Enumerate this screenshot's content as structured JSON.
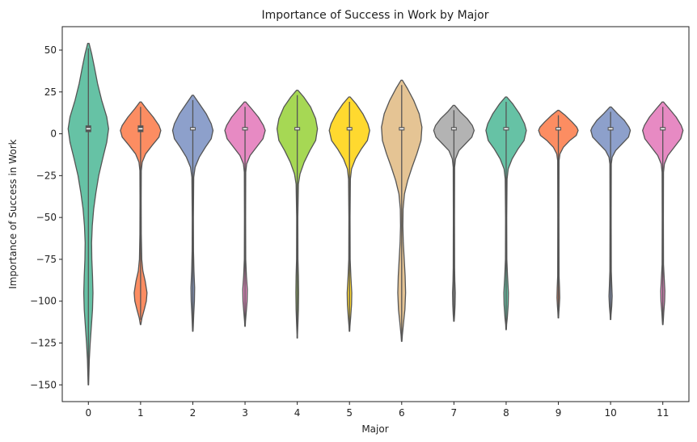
{
  "chart_data": {
    "type": "violin",
    "title": "Importance of Success in Work by Major",
    "xlabel": "Major",
    "ylabel": "Importance of Success in Work",
    "categories": [
      "0",
      "1",
      "2",
      "3",
      "4",
      "5",
      "6",
      "7",
      "8",
      "9",
      "10",
      "11"
    ],
    "ylim": [
      -160,
      64
    ],
    "yticks": [
      50,
      25,
      0,
      -25,
      -50,
      -75,
      -100,
      -125,
      -150
    ],
    "palette": [
      "#66c2a5",
      "#fc8d62",
      "#8da0cb",
      "#e78ac3",
      "#a6d854",
      "#ffd92f",
      "#e5c494",
      "#b3b3b3",
      "#66c2a5",
      "#fc8d62",
      "#8da0cb",
      "#e78ac3"
    ],
    "outline_color": "#555555",
    "violins": [
      {
        "category": "0",
        "max": 54,
        "min": -150,
        "median": 3,
        "q1": 1,
        "q3": 5,
        "profile": [
          [
            54,
            0.03
          ],
          [
            48,
            0.14
          ],
          [
            40,
            0.26
          ],
          [
            30,
            0.4
          ],
          [
            20,
            0.58
          ],
          [
            10,
            0.8
          ],
          [
            3,
            0.88
          ],
          [
            -5,
            0.8
          ],
          [
            -15,
            0.62
          ],
          [
            -25,
            0.45
          ],
          [
            -35,
            0.33
          ],
          [
            -45,
            0.23
          ],
          [
            -55,
            0.17
          ],
          [
            -65,
            0.14
          ],
          [
            -75,
            0.15
          ],
          [
            -85,
            0.18
          ],
          [
            -95,
            0.2
          ],
          [
            -105,
            0.18
          ],
          [
            -115,
            0.13
          ],
          [
            -125,
            0.08
          ],
          [
            -135,
            0.04
          ],
          [
            -145,
            0.02
          ],
          [
            -150,
            0.01
          ]
        ]
      },
      {
        "category": "1",
        "max": 19,
        "min": -114,
        "median": 3,
        "q1": 1,
        "q3": 5,
        "profile": [
          [
            19,
            0.03
          ],
          [
            15,
            0.25
          ],
          [
            10,
            0.55
          ],
          [
            5,
            0.8
          ],
          [
            2,
            0.88
          ],
          [
            -2,
            0.8
          ],
          [
            -7,
            0.5
          ],
          [
            -12,
            0.22
          ],
          [
            -17,
            0.07
          ],
          [
            -22,
            0.03
          ],
          [
            -40,
            0.025
          ],
          [
            -60,
            0.03
          ],
          [
            -75,
            0.05
          ],
          [
            -82,
            0.1
          ],
          [
            -88,
            0.2
          ],
          [
            -95,
            0.28
          ],
          [
            -100,
            0.25
          ],
          [
            -105,
            0.16
          ],
          [
            -110,
            0.06
          ],
          [
            -114,
            0.01
          ]
        ]
      },
      {
        "category": "2",
        "max": 23,
        "min": -118,
        "median": 3,
        "q1": 2,
        "q3": 4,
        "profile": [
          [
            23,
            0.03
          ],
          [
            18,
            0.28
          ],
          [
            12,
            0.58
          ],
          [
            6,
            0.8
          ],
          [
            2,
            0.88
          ],
          [
            -3,
            0.8
          ],
          [
            -8,
            0.55
          ],
          [
            -14,
            0.28
          ],
          [
            -20,
            0.1
          ],
          [
            -26,
            0.04
          ],
          [
            -50,
            0.025
          ],
          [
            -70,
            0.03
          ],
          [
            -82,
            0.05
          ],
          [
            -92,
            0.08
          ],
          [
            -100,
            0.07
          ],
          [
            -108,
            0.04
          ],
          [
            -115,
            0.02
          ],
          [
            -118,
            0.01
          ]
        ]
      },
      {
        "category": "3",
        "max": 19,
        "min": -115,
        "median": 3,
        "q1": 2,
        "q3": 4,
        "profile": [
          [
            19,
            0.03
          ],
          [
            15,
            0.28
          ],
          [
            10,
            0.58
          ],
          [
            5,
            0.8
          ],
          [
            2,
            0.88
          ],
          [
            -3,
            0.78
          ],
          [
            -8,
            0.5
          ],
          [
            -13,
            0.22
          ],
          [
            -18,
            0.07
          ],
          [
            -23,
            0.03
          ],
          [
            -50,
            0.025
          ],
          [
            -75,
            0.03
          ],
          [
            -85,
            0.06
          ],
          [
            -93,
            0.1
          ],
          [
            -100,
            0.09
          ],
          [
            -107,
            0.05
          ],
          [
            -112,
            0.02
          ],
          [
            -115,
            0.01
          ]
        ]
      },
      {
        "category": "4",
        "max": 26,
        "min": -122,
        "median": 3,
        "q1": 2,
        "q3": 4,
        "profile": [
          [
            26,
            0.03
          ],
          [
            22,
            0.28
          ],
          [
            16,
            0.58
          ],
          [
            9,
            0.8
          ],
          [
            3,
            0.88
          ],
          [
            -4,
            0.8
          ],
          [
            -10,
            0.55
          ],
          [
            -17,
            0.3
          ],
          [
            -24,
            0.12
          ],
          [
            -30,
            0.05
          ],
          [
            -50,
            0.025
          ],
          [
            -75,
            0.03
          ],
          [
            -85,
            0.05
          ],
          [
            -95,
            0.06
          ],
          [
            -105,
            0.05
          ],
          [
            -113,
            0.03
          ],
          [
            -120,
            0.01
          ],
          [
            -122,
            0.01
          ]
        ]
      },
      {
        "category": "5",
        "max": 22,
        "min": -118,
        "median": 3,
        "q1": 2,
        "q3": 4,
        "profile": [
          [
            22,
            0.03
          ],
          [
            18,
            0.28
          ],
          [
            12,
            0.58
          ],
          [
            6,
            0.8
          ],
          [
            2,
            0.88
          ],
          [
            -4,
            0.78
          ],
          [
            -9,
            0.52
          ],
          [
            -15,
            0.26
          ],
          [
            -21,
            0.09
          ],
          [
            -27,
            0.04
          ],
          [
            -50,
            0.025
          ],
          [
            -75,
            0.03
          ],
          [
            -85,
            0.06
          ],
          [
            -95,
            0.1
          ],
          [
            -102,
            0.09
          ],
          [
            -110,
            0.05
          ],
          [
            -115,
            0.02
          ],
          [
            -118,
            0.01
          ]
        ]
      },
      {
        "category": "6",
        "max": 32,
        "min": -124,
        "median": 3,
        "q1": 2,
        "q3": 4,
        "profile": [
          [
            32,
            0.03
          ],
          [
            27,
            0.25
          ],
          [
            20,
            0.52
          ],
          [
            12,
            0.76
          ],
          [
            4,
            0.88
          ],
          [
            -4,
            0.84
          ],
          [
            -12,
            0.66
          ],
          [
            -20,
            0.45
          ],
          [
            -28,
            0.26
          ],
          [
            -36,
            0.12
          ],
          [
            -45,
            0.06
          ],
          [
            -55,
            0.05
          ],
          [
            -65,
            0.07
          ],
          [
            -75,
            0.11
          ],
          [
            -85,
            0.15
          ],
          [
            -95,
            0.17
          ],
          [
            -105,
            0.14
          ],
          [
            -113,
            0.08
          ],
          [
            -120,
            0.03
          ],
          [
            -124,
            0.01
          ]
        ]
      },
      {
        "category": "7",
        "max": 17,
        "min": -112,
        "median": 3,
        "q1": 2,
        "q3": 4,
        "profile": [
          [
            17,
            0.03
          ],
          [
            13,
            0.28
          ],
          [
            9,
            0.58
          ],
          [
            5,
            0.8
          ],
          [
            2,
            0.88
          ],
          [
            -2,
            0.78
          ],
          [
            -6,
            0.5
          ],
          [
            -10,
            0.22
          ],
          [
            -15,
            0.07
          ],
          [
            -20,
            0.03
          ],
          [
            -50,
            0.025
          ],
          [
            -80,
            0.03
          ],
          [
            -88,
            0.04
          ],
          [
            -95,
            0.06
          ],
          [
            -102,
            0.05
          ],
          [
            -108,
            0.03
          ],
          [
            -112,
            0.01
          ]
        ]
      },
      {
        "category": "8",
        "max": 22,
        "min": -117,
        "median": 3,
        "q1": 2,
        "q3": 4,
        "profile": [
          [
            22,
            0.03
          ],
          [
            18,
            0.28
          ],
          [
            12,
            0.58
          ],
          [
            6,
            0.8
          ],
          [
            2,
            0.88
          ],
          [
            -4,
            0.78
          ],
          [
            -9,
            0.52
          ],
          [
            -15,
            0.26
          ],
          [
            -21,
            0.09
          ],
          [
            -27,
            0.04
          ],
          [
            -50,
            0.025
          ],
          [
            -75,
            0.03
          ],
          [
            -85,
            0.06
          ],
          [
            -95,
            0.1
          ],
          [
            -102,
            0.09
          ],
          [
            -110,
            0.05
          ],
          [
            -114,
            0.02
          ],
          [
            -117,
            0.01
          ]
        ]
      },
      {
        "category": "9",
        "max": 14,
        "min": -110,
        "median": 3,
        "q1": 2,
        "q3": 4,
        "profile": [
          [
            14,
            0.03
          ],
          [
            11,
            0.3
          ],
          [
            7,
            0.6
          ],
          [
            4,
            0.8
          ],
          [
            2,
            0.86
          ],
          [
            -1,
            0.78
          ],
          [
            -4,
            0.5
          ],
          [
            -8,
            0.22
          ],
          [
            -12,
            0.07
          ],
          [
            -16,
            0.03
          ],
          [
            -50,
            0.025
          ],
          [
            -85,
            0.03
          ],
          [
            -92,
            0.05
          ],
          [
            -98,
            0.06
          ],
          [
            -103,
            0.04
          ],
          [
            -107,
            0.02
          ],
          [
            -110,
            0.01
          ]
        ]
      },
      {
        "category": "10",
        "max": 16,
        "min": -111,
        "median": 3,
        "q1": 2,
        "q3": 4,
        "profile": [
          [
            16,
            0.03
          ],
          [
            12,
            0.3
          ],
          [
            8,
            0.6
          ],
          [
            4,
            0.8
          ],
          [
            2,
            0.86
          ],
          [
            -2,
            0.78
          ],
          [
            -6,
            0.5
          ],
          [
            -10,
            0.22
          ],
          [
            -14,
            0.07
          ],
          [
            -18,
            0.03
          ],
          [
            -50,
            0.025
          ],
          [
            -82,
            0.03
          ],
          [
            -90,
            0.05
          ],
          [
            -97,
            0.07
          ],
          [
            -103,
            0.05
          ],
          [
            -108,
            0.02
          ],
          [
            -111,
            0.01
          ]
        ]
      },
      {
        "category": "11",
        "max": 19,
        "min": -114,
        "median": 3,
        "q1": 2,
        "q3": 4,
        "profile": [
          [
            19,
            0.03
          ],
          [
            15,
            0.28
          ],
          [
            10,
            0.58
          ],
          [
            5,
            0.8
          ],
          [
            2,
            0.88
          ],
          [
            -3,
            0.78
          ],
          [
            -8,
            0.5
          ],
          [
            -13,
            0.22
          ],
          [
            -18,
            0.07
          ],
          [
            -23,
            0.03
          ],
          [
            -50,
            0.025
          ],
          [
            -78,
            0.03
          ],
          [
            -86,
            0.06
          ],
          [
            -94,
            0.09
          ],
          [
            -100,
            0.08
          ],
          [
            -107,
            0.04
          ],
          [
            -112,
            0.02
          ],
          [
            -114,
            0.01
          ]
        ]
      }
    ]
  }
}
